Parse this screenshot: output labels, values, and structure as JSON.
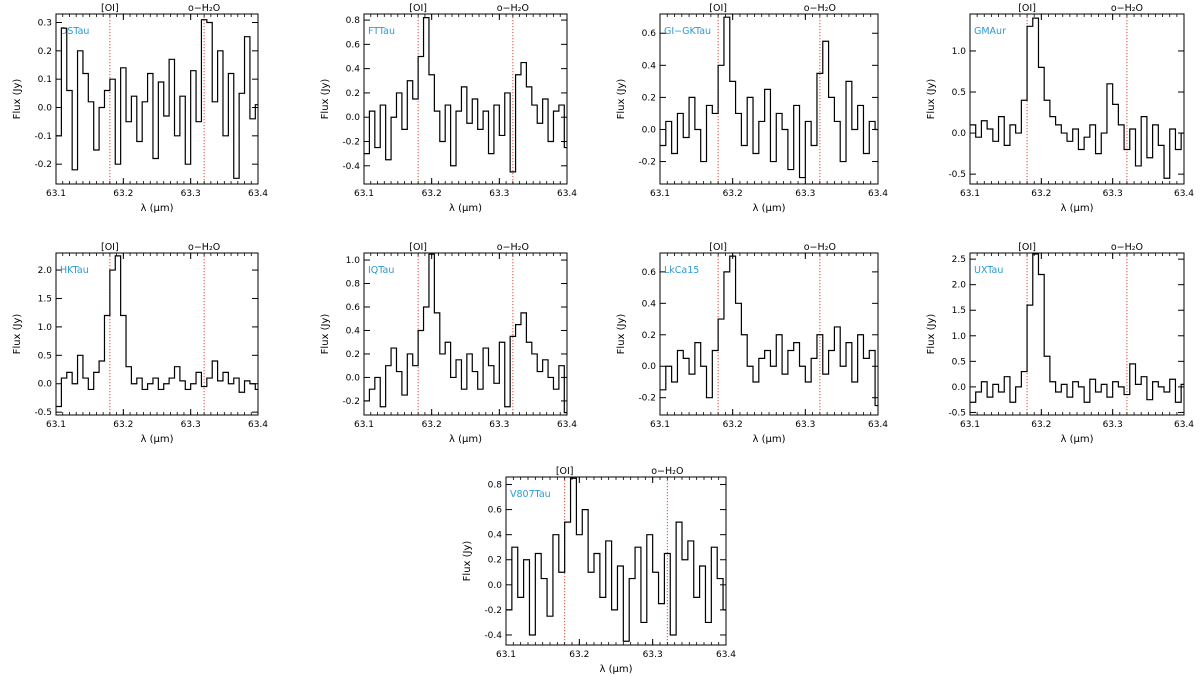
{
  "figure": {
    "xlabel": "λ (μm)",
    "ylabel": "Flux (Jy)",
    "line_markers": [
      {
        "label": "[OI]",
        "x": 63.18
      },
      {
        "label": "o−H₂O",
        "x": 63.32
      }
    ],
    "colors": {
      "spectrum": "#000000",
      "marker": "#e0463c",
      "star_label": "#2b9ad8",
      "axis": "#000000"
    }
  },
  "chart_data": [
    {
      "type": "line",
      "title": "DSTau",
      "xlabel": "λ (μm)",
      "ylabel": "Flux (Jy)",
      "xlim": [
        63.1,
        63.4
      ],
      "ylim": [
        -0.27,
        0.33
      ],
      "xticks": [
        63.1,
        63.2,
        63.3,
        63.4
      ],
      "yticks": [
        -0.2,
        -0.1,
        0.0,
        0.1,
        0.2,
        0.3
      ],
      "line_markers": [
        63.18,
        63.32
      ],
      "x": [
        63.1,
        63.108,
        63.116,
        63.124,
        63.132,
        63.14,
        63.148,
        63.156,
        63.164,
        63.172,
        63.18,
        63.188,
        63.196,
        63.204,
        63.212,
        63.22,
        63.228,
        63.236,
        63.244,
        63.252,
        63.26,
        63.268,
        63.276,
        63.284,
        63.292,
        63.3,
        63.308,
        63.316,
        63.324,
        63.332,
        63.34,
        63.348,
        63.356,
        63.364,
        63.372,
        63.38,
        63.388,
        63.396
      ],
      "y": [
        -0.1,
        0.28,
        0.06,
        -0.22,
        0.2,
        0.12,
        0.02,
        -0.15,
        0.0,
        0.06,
        0.1,
        -0.2,
        0.14,
        -0.05,
        0.04,
        -0.12,
        0.02,
        0.12,
        -0.18,
        0.09,
        -0.03,
        0.17,
        -0.1,
        0.04,
        -0.2,
        0.13,
        -0.05,
        0.31,
        0.3,
        0.02,
        0.2,
        -0.1,
        0.12,
        -0.25,
        0.05,
        0.25,
        -0.04,
        0.01
      ]
    },
    {
      "type": "line",
      "title": "FTTau",
      "xlabel": "λ (μm)",
      "ylabel": "Flux (Jy)",
      "xlim": [
        63.1,
        63.4
      ],
      "ylim": [
        -0.55,
        0.85
      ],
      "xticks": [
        63.1,
        63.2,
        63.3,
        63.4
      ],
      "yticks": [
        -0.4,
        -0.2,
        0.0,
        0.2,
        0.4,
        0.6,
        0.8
      ],
      "line_markers": [
        63.18,
        63.32
      ],
      "x": [
        63.1,
        63.108,
        63.116,
        63.124,
        63.132,
        63.14,
        63.148,
        63.156,
        63.164,
        63.172,
        63.18,
        63.188,
        63.196,
        63.204,
        63.212,
        63.22,
        63.228,
        63.236,
        63.244,
        63.252,
        63.26,
        63.268,
        63.276,
        63.284,
        63.292,
        63.3,
        63.308,
        63.316,
        63.324,
        63.332,
        63.34,
        63.348,
        63.356,
        63.364,
        63.372,
        63.38,
        63.388,
        63.396
      ],
      "y": [
        -0.3,
        0.05,
        -0.25,
        0.1,
        -0.35,
        0.0,
        0.2,
        -0.1,
        0.3,
        0.15,
        0.5,
        0.82,
        0.35,
        0.05,
        -0.2,
        0.1,
        -0.4,
        0.05,
        0.25,
        -0.05,
        0.15,
        -0.1,
        0.05,
        -0.3,
        0.1,
        -0.15,
        0.2,
        -0.45,
        0.35,
        0.45,
        0.25,
        0.1,
        -0.05,
        0.15,
        -0.2,
        0.05,
        0.1,
        -0.25
      ]
    },
    {
      "type": "line",
      "title": "GI−GKTau",
      "xlabel": "λ (μm)",
      "ylabel": "Flux (Jy)",
      "xlim": [
        63.1,
        63.4
      ],
      "ylim": [
        -0.34,
        0.72
      ],
      "xticks": [
        63.1,
        63.2,
        63.3,
        63.4
      ],
      "yticks": [
        -0.2,
        0.0,
        0.2,
        0.4,
        0.6
      ],
      "line_markers": [
        63.18,
        63.32
      ],
      "x": [
        63.1,
        63.108,
        63.116,
        63.124,
        63.132,
        63.14,
        63.148,
        63.156,
        63.164,
        63.172,
        63.18,
        63.188,
        63.196,
        63.204,
        63.212,
        63.22,
        63.228,
        63.236,
        63.244,
        63.252,
        63.26,
        63.268,
        63.276,
        63.284,
        63.292,
        63.3,
        63.308,
        63.316,
        63.324,
        63.332,
        63.34,
        63.348,
        63.356,
        63.364,
        63.372,
        63.38,
        63.388,
        63.396
      ],
      "y": [
        -0.1,
        0.05,
        -0.15,
        0.1,
        -0.05,
        0.2,
        0.0,
        -0.2,
        0.15,
        0.1,
        0.4,
        0.7,
        0.3,
        0.1,
        -0.1,
        0.2,
        -0.15,
        0.05,
        0.25,
        -0.2,
        0.1,
        0.0,
        -0.25,
        0.15,
        -0.3,
        0.05,
        -0.1,
        0.35,
        0.55,
        0.2,
        0.05,
        -0.2,
        0.3,
        0.0,
        0.15,
        -0.15,
        0.05,
        0.0
      ]
    },
    {
      "type": "line",
      "title": "GMAur",
      "xlabel": "λ (μm)",
      "ylabel": "Flux (Jy)",
      "xlim": [
        63.1,
        63.4
      ],
      "ylim": [
        -0.62,
        1.45
      ],
      "xticks": [
        63.1,
        63.2,
        63.3,
        63.4
      ],
      "yticks": [
        -0.5,
        0.0,
        0.5,
        1.0
      ],
      "line_markers": [
        63.18,
        63.32
      ],
      "x": [
        63.1,
        63.108,
        63.116,
        63.124,
        63.132,
        63.14,
        63.148,
        63.156,
        63.164,
        63.172,
        63.18,
        63.188,
        63.196,
        63.204,
        63.212,
        63.22,
        63.228,
        63.236,
        63.244,
        63.252,
        63.26,
        63.268,
        63.276,
        63.284,
        63.292,
        63.3,
        63.308,
        63.316,
        63.324,
        63.332,
        63.34,
        63.348,
        63.356,
        63.364,
        63.372,
        63.38,
        63.388,
        63.396
      ],
      "y": [
        0.1,
        -0.05,
        0.15,
        0.05,
        -0.1,
        0.2,
        -0.15,
        0.1,
        0.0,
        0.4,
        1.3,
        1.4,
        0.8,
        0.4,
        0.2,
        0.1,
        0.0,
        -0.1,
        0.05,
        -0.2,
        -0.05,
        0.1,
        -0.25,
        0.0,
        0.6,
        0.35,
        0.1,
        -0.2,
        0.05,
        -0.4,
        0.2,
        -0.3,
        0.1,
        -0.15,
        -0.55,
        0.05,
        -0.2,
        0.0
      ]
    },
    {
      "type": "line",
      "title": "HKTau",
      "xlabel": "λ (μm)",
      "ylabel": "Flux (Jy)",
      "xlim": [
        63.1,
        63.4
      ],
      "ylim": [
        -0.55,
        2.3
      ],
      "xticks": [
        63.1,
        63.2,
        63.3,
        63.4
      ],
      "yticks": [
        -0.5,
        0.0,
        0.5,
        1.0,
        1.5,
        2.0
      ],
      "line_markers": [
        63.18,
        63.32
      ],
      "x": [
        63.1,
        63.108,
        63.116,
        63.124,
        63.132,
        63.14,
        63.148,
        63.156,
        63.164,
        63.172,
        63.18,
        63.188,
        63.196,
        63.204,
        63.212,
        63.22,
        63.228,
        63.236,
        63.244,
        63.252,
        63.26,
        63.268,
        63.276,
        63.284,
        63.292,
        63.3,
        63.308,
        63.316,
        63.324,
        63.332,
        63.34,
        63.348,
        63.356,
        63.364,
        63.372,
        63.38,
        63.388,
        63.396
      ],
      "y": [
        -0.4,
        0.1,
        0.2,
        0.0,
        0.5,
        0.1,
        -0.1,
        0.2,
        0.4,
        1.2,
        2.0,
        2.25,
        1.2,
        0.3,
        0.0,
        0.1,
        -0.1,
        0.0,
        0.1,
        -0.1,
        0.0,
        0.1,
        0.3,
        0.05,
        -0.1,
        0.0,
        0.2,
        -0.05,
        0.1,
        0.4,
        0.05,
        0.2,
        0.0,
        0.1,
        -0.15,
        0.05,
        0.0,
        -0.1
      ]
    },
    {
      "type": "line",
      "title": "IQTau",
      "xlabel": "λ (μm)",
      "ylabel": "Flux (Jy)",
      "xlim": [
        63.1,
        63.4
      ],
      "ylim": [
        -0.32,
        1.06
      ],
      "xticks": [
        63.1,
        63.2,
        63.3,
        63.4
      ],
      "yticks": [
        -0.2,
        0.0,
        0.2,
        0.4,
        0.6,
        0.8,
        1.0
      ],
      "line_markers": [
        63.18,
        63.32
      ],
      "x": [
        63.1,
        63.108,
        63.116,
        63.124,
        63.132,
        63.14,
        63.148,
        63.156,
        63.164,
        63.172,
        63.18,
        63.188,
        63.196,
        63.204,
        63.212,
        63.22,
        63.228,
        63.236,
        63.244,
        63.252,
        63.26,
        63.268,
        63.276,
        63.284,
        63.292,
        63.3,
        63.308,
        63.316,
        63.324,
        63.332,
        63.34,
        63.348,
        63.356,
        63.364,
        63.372,
        63.38,
        63.388,
        63.396
      ],
      "y": [
        -0.2,
        -0.1,
        0.0,
        -0.25,
        0.1,
        0.25,
        0.05,
        -0.15,
        0.2,
        0.1,
        0.4,
        0.6,
        1.05,
        0.55,
        0.2,
        0.3,
        0.0,
        0.15,
        -0.1,
        0.2,
        0.05,
        -0.1,
        0.25,
        0.1,
        -0.05,
        0.3,
        -0.25,
        0.35,
        0.45,
        0.55,
        0.3,
        0.2,
        0.05,
        0.15,
        0.0,
        -0.1,
        0.1,
        -0.3
      ]
    },
    {
      "type": "line",
      "title": "LkCa15",
      "xlabel": "λ (μm)",
      "ylabel": "Flux (Jy)",
      "xlim": [
        63.1,
        63.4
      ],
      "ylim": [
        -0.31,
        0.72
      ],
      "xticks": [
        63.1,
        63.2,
        63.3,
        63.4
      ],
      "yticks": [
        -0.2,
        0.0,
        0.2,
        0.4,
        0.6
      ],
      "line_markers": [
        63.18,
        63.32
      ],
      "x": [
        63.1,
        63.108,
        63.116,
        63.124,
        63.132,
        63.14,
        63.148,
        63.156,
        63.164,
        63.172,
        63.18,
        63.188,
        63.196,
        63.204,
        63.212,
        63.22,
        63.228,
        63.236,
        63.244,
        63.252,
        63.26,
        63.268,
        63.276,
        63.284,
        63.292,
        63.3,
        63.308,
        63.316,
        63.324,
        63.332,
        63.34,
        63.348,
        63.356,
        63.364,
        63.372,
        63.38,
        63.388,
        63.396
      ],
      "y": [
        -0.15,
        0.0,
        -0.1,
        0.1,
        0.05,
        -0.05,
        0.15,
        0.0,
        -0.2,
        0.1,
        0.3,
        0.6,
        0.7,
        0.4,
        0.2,
        0.0,
        -0.1,
        0.05,
        0.1,
        0.0,
        0.2,
        -0.05,
        0.1,
        0.15,
        0.0,
        -0.1,
        0.05,
        0.2,
        -0.05,
        0.1,
        0.25,
        0.0,
        0.15,
        -0.1,
        0.2,
        0.05,
        0.1,
        -0.25
      ]
    },
    {
      "type": "line",
      "title": "UXTau",
      "xlabel": "λ (μm)",
      "ylabel": "Flux (Jy)",
      "xlim": [
        63.1,
        63.4
      ],
      "ylim": [
        -0.55,
        2.62
      ],
      "xticks": [
        63.1,
        63.2,
        63.3,
        63.4
      ],
      "yticks": [
        -0.5,
        0.0,
        0.5,
        1.0,
        1.5,
        2.0,
        2.5
      ],
      "line_markers": [
        63.18,
        63.32
      ],
      "x": [
        63.1,
        63.108,
        63.116,
        63.124,
        63.132,
        63.14,
        63.148,
        63.156,
        63.164,
        63.172,
        63.18,
        63.188,
        63.196,
        63.204,
        63.212,
        63.22,
        63.228,
        63.236,
        63.244,
        63.252,
        63.26,
        63.268,
        63.276,
        63.284,
        63.292,
        63.3,
        63.308,
        63.316,
        63.324,
        63.332,
        63.34,
        63.348,
        63.356,
        63.364,
        63.372,
        63.38,
        63.388,
        63.396
      ],
      "y": [
        -0.3,
        -0.1,
        0.1,
        -0.2,
        0.05,
        -0.1,
        0.2,
        -0.3,
        0.0,
        0.3,
        1.6,
        2.6,
        2.2,
        0.6,
        0.1,
        -0.1,
        0.05,
        -0.2,
        0.1,
        0.0,
        -0.3,
        0.15,
        -0.1,
        0.05,
        -0.2,
        0.1,
        0.0,
        -0.15,
        0.45,
        0.05,
        0.2,
        -0.25,
        0.1,
        0.0,
        -0.1,
        0.15,
        -0.3,
        0.05
      ]
    },
    {
      "type": "line",
      "title": "V807Tau",
      "xlabel": "λ (μm)",
      "ylabel": "Flux (Jy)",
      "xlim": [
        63.1,
        63.4
      ],
      "ylim": [
        -0.48,
        0.86
      ],
      "xticks": [
        63.1,
        63.2,
        63.3,
        63.4
      ],
      "yticks": [
        -0.4,
        -0.2,
        0.0,
        0.2,
        0.4,
        0.6,
        0.8
      ],
      "line_markers": [
        63.18,
        63.32
      ],
      "x": [
        63.1,
        63.108,
        63.116,
        63.124,
        63.132,
        63.14,
        63.148,
        63.156,
        63.164,
        63.172,
        63.18,
        63.188,
        63.196,
        63.204,
        63.212,
        63.22,
        63.228,
        63.236,
        63.244,
        63.252,
        63.26,
        63.268,
        63.276,
        63.284,
        63.292,
        63.3,
        63.308,
        63.316,
        63.324,
        63.332,
        63.34,
        63.348,
        63.356,
        63.364,
        63.372,
        63.38,
        63.388,
        63.396
      ],
      "y": [
        -0.2,
        0.3,
        -0.1,
        0.2,
        -0.4,
        0.25,
        0.05,
        -0.25,
        0.4,
        0.1,
        0.5,
        0.85,
        0.4,
        0.6,
        0.1,
        0.25,
        -0.1,
        0.35,
        -0.2,
        0.15,
        -0.45,
        0.05,
        0.3,
        -0.3,
        0.4,
        0.1,
        -0.15,
        0.25,
        -0.4,
        0.5,
        0.2,
        0.35,
        -0.1,
        0.15,
        -0.3,
        0.3,
        0.05,
        -0.2
      ]
    }
  ]
}
